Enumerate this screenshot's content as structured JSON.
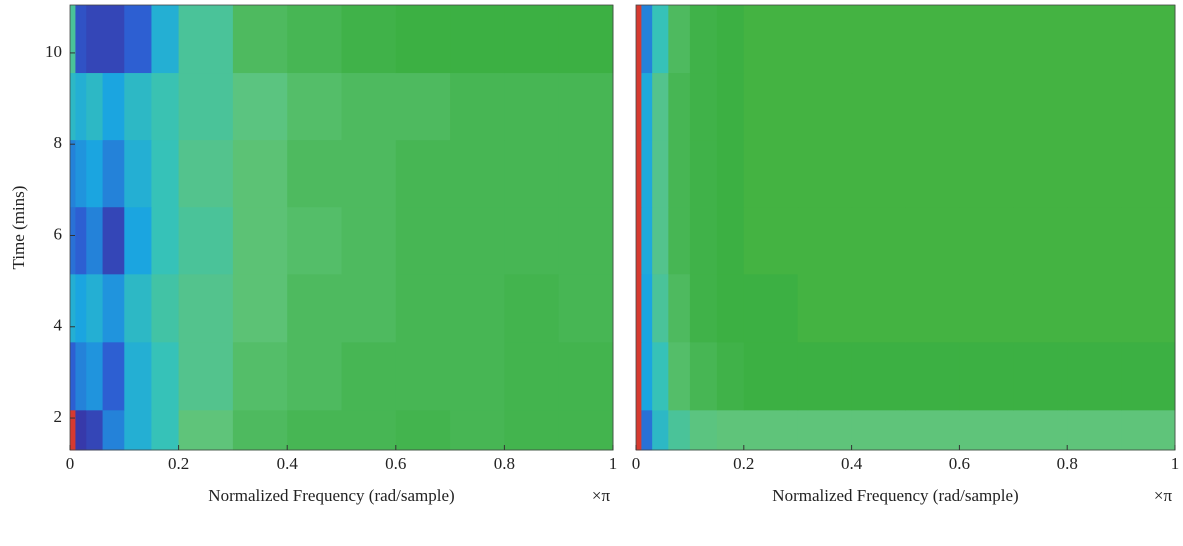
{
  "chart_data": [
    {
      "type": "heatmap",
      "xlabel": "Normalized Frequency (rad/sample)",
      "xunit": "×π",
      "ylabel": "Time (mins)",
      "xlim": [
        0,
        1
      ],
      "xticks": [
        0,
        0.2,
        0.4,
        0.6,
        0.8,
        1
      ],
      "ylim": [
        1.3,
        11.05
      ],
      "yticks": [
        2,
        4,
        6,
        8,
        10
      ],
      "x_edges": [
        0,
        0.01,
        0.03,
        0.06,
        0.1,
        0.15,
        0.2,
        0.3,
        0.4,
        0.5,
        0.6,
        0.7,
        0.8,
        0.9,
        1
      ],
      "y_edges": [
        1.3,
        2.18,
        3.67,
        5.16,
        6.63,
        8.1,
        9.57,
        11.05
      ],
      "colormap": [
        {
          "value": 0,
          "color": "#3a2c9c"
        },
        {
          "value": 0.2,
          "color": "#2d5fd2"
        },
        {
          "value": 0.4,
          "color": "#1ba5e0"
        },
        {
          "value": 0.55,
          "color": "#36c2b8"
        },
        {
          "value": 0.65,
          "color": "#5fc47a"
        },
        {
          "value": 0.75,
          "color": "#3cb043"
        },
        {
          "value": 0.9,
          "color": "#b8d830"
        },
        {
          "value": 1,
          "color": "#d63a30"
        }
      ],
      "values": [
        [
          1,
          0.05,
          0.1,
          0.3,
          0.45,
          0.55,
          0.65,
          0.7,
          0.72,
          0.72,
          0.73,
          0.72,
          0.73,
          0.73
        ],
        [
          0.2,
          0.3,
          0.35,
          0.2,
          0.45,
          0.55,
          0.62,
          0.68,
          0.7,
          0.72,
          0.72,
          0.72,
          0.73,
          0.73
        ],
        [
          0.45,
          0.4,
          0.45,
          0.35,
          0.5,
          0.58,
          0.62,
          0.66,
          0.7,
          0.7,
          0.72,
          0.72,
          0.73,
          0.72
        ],
        [
          0.25,
          0.2,
          0.3,
          0.1,
          0.4,
          0.55,
          0.6,
          0.66,
          0.68,
          0.7,
          0.72,
          0.72,
          0.72,
          0.72
        ],
        [
          0.3,
          0.35,
          0.4,
          0.3,
          0.45,
          0.55,
          0.62,
          0.66,
          0.7,
          0.7,
          0.72,
          0.72,
          0.72,
          0.72
        ],
        [
          0.5,
          0.45,
          0.5,
          0.4,
          0.5,
          0.56,
          0.6,
          0.64,
          0.68,
          0.7,
          0.7,
          0.72,
          0.72,
          0.72
        ],
        [
          0.6,
          0.15,
          0.1,
          0.1,
          0.2,
          0.45,
          0.6,
          0.7,
          0.72,
          0.74,
          0.75,
          0.75,
          0.75,
          0.75
        ]
      ]
    },
    {
      "type": "heatmap",
      "xlabel": "Normalized Frequency (rad/sample)",
      "xunit": "×π",
      "xlim": [
        0,
        1
      ],
      "xticks": [
        0,
        0.2,
        0.4,
        0.6,
        0.8,
        1
      ],
      "ylim": [
        1.3,
        11.05
      ],
      "x_edges": [
        0,
        0.01,
        0.03,
        0.06,
        0.1,
        0.15,
        0.2,
        0.3,
        0.4,
        0.5,
        0.6,
        0.7,
        0.8,
        0.9,
        1
      ],
      "y_edges": [
        1.3,
        2.18,
        3.67,
        5.16,
        6.63,
        8.1,
        9.57,
        11.05
      ],
      "values": [
        [
          1,
          0.25,
          0.5,
          0.6,
          0.64,
          0.65,
          0.65,
          0.65,
          0.65,
          0.65,
          0.65,
          0.65,
          0.65,
          0.65
        ],
        [
          1,
          0.4,
          0.55,
          0.68,
          0.72,
          0.74,
          0.75,
          0.75,
          0.75,
          0.75,
          0.75,
          0.75,
          0.75,
          0.75
        ],
        [
          1,
          0.4,
          0.6,
          0.7,
          0.74,
          0.75,
          0.75,
          0.76,
          0.76,
          0.76,
          0.76,
          0.76,
          0.76,
          0.76
        ],
        [
          1,
          0.42,
          0.62,
          0.72,
          0.74,
          0.75,
          0.76,
          0.76,
          0.76,
          0.76,
          0.76,
          0.76,
          0.76,
          0.76
        ],
        [
          1,
          0.42,
          0.62,
          0.72,
          0.74,
          0.75,
          0.76,
          0.76,
          0.76,
          0.76,
          0.76,
          0.76,
          0.76,
          0.76
        ],
        [
          1,
          0.42,
          0.62,
          0.72,
          0.74,
          0.75,
          0.76,
          0.76,
          0.76,
          0.76,
          0.76,
          0.76,
          0.76,
          0.76
        ],
        [
          1,
          0.3,
          0.55,
          0.7,
          0.74,
          0.75,
          0.76,
          0.76,
          0.76,
          0.76,
          0.76,
          0.76,
          0.76,
          0.76
        ]
      ]
    }
  ]
}
